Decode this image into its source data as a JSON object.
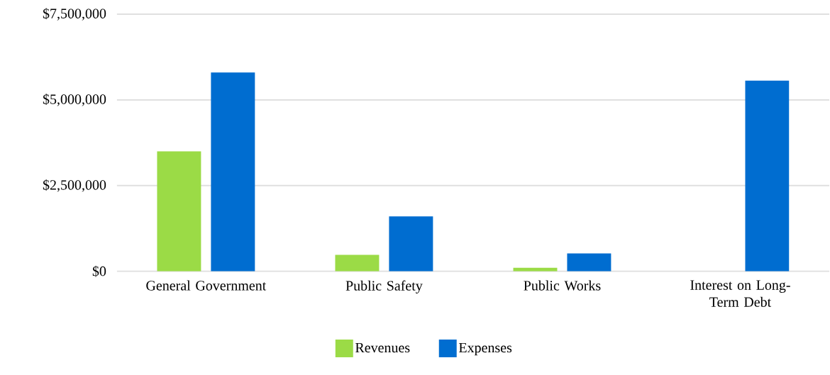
{
  "chart_data": {
    "type": "bar",
    "categories": [
      "General Government",
      "Public Safety",
      "Public Works",
      "Interest on Long-Term Debt"
    ],
    "series": [
      {
        "name": "Revenues",
        "color": "#9bdb46",
        "values": [
          3500000,
          480000,
          100000,
          0
        ]
      },
      {
        "name": "Expenses",
        "color": "#006dd0",
        "values": [
          5800000,
          1600000,
          520000,
          5560000
        ]
      }
    ],
    "ylim": [
      0,
      7500000
    ],
    "yticks": [
      {
        "value": 0,
        "label": "$0"
      },
      {
        "value": 2500000,
        "label": "$2,500,000"
      },
      {
        "value": 5000000,
        "label": "$5,000,000"
      },
      {
        "value": 7500000,
        "label": "$7,500,000"
      }
    ],
    "grid": "y",
    "legend": "bottom"
  }
}
